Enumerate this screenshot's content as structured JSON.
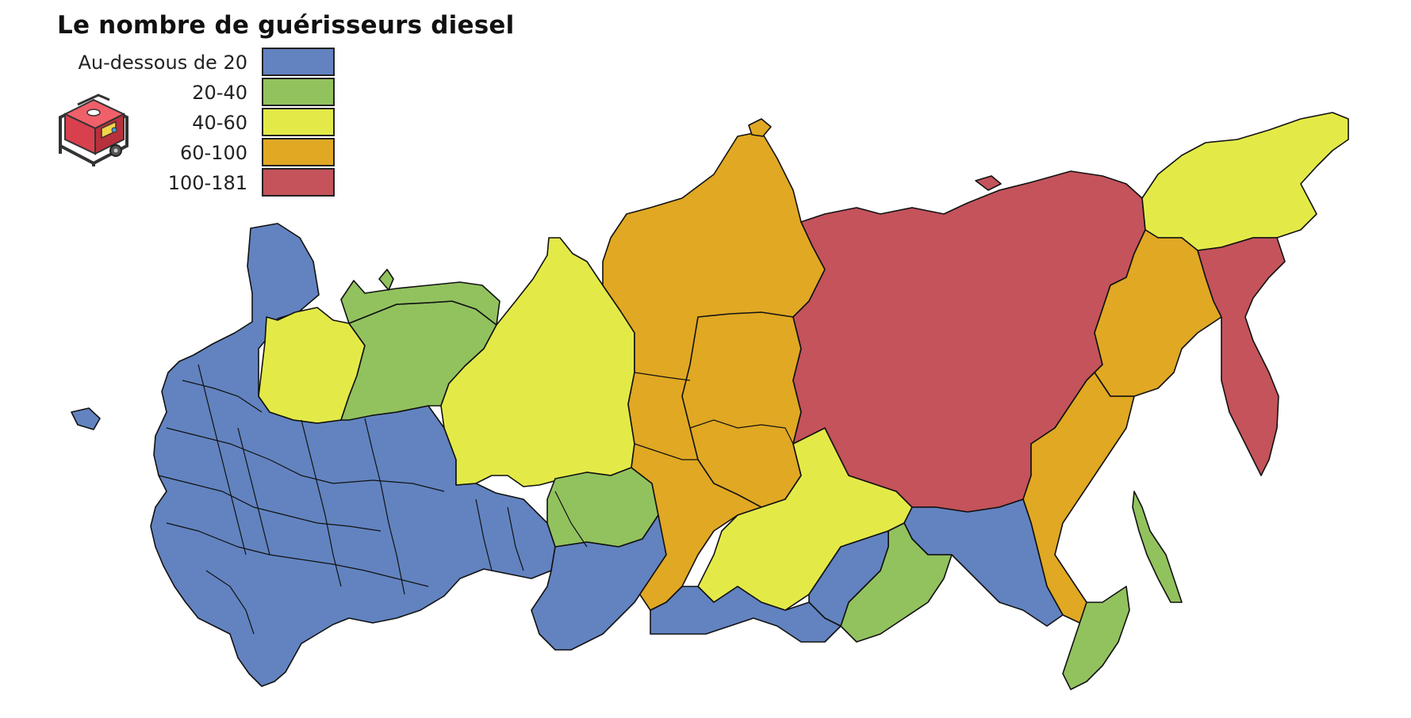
{
  "title": "Le nombre de guérisseurs diesel",
  "legend": {
    "items": [
      {
        "label": "Au-dessous de 20",
        "color": "#6283c0"
      },
      {
        "label": "20-40",
        "color": "#92c25e"
      },
      {
        "label": "40-60",
        "color": "#e3ea48"
      },
      {
        "label": "60-100",
        "color": "#e0a823"
      },
      {
        "label": "100-181",
        "color": "#c4535b"
      }
    ]
  },
  "icons": {
    "legend_icon": "generator-icon"
  }
}
